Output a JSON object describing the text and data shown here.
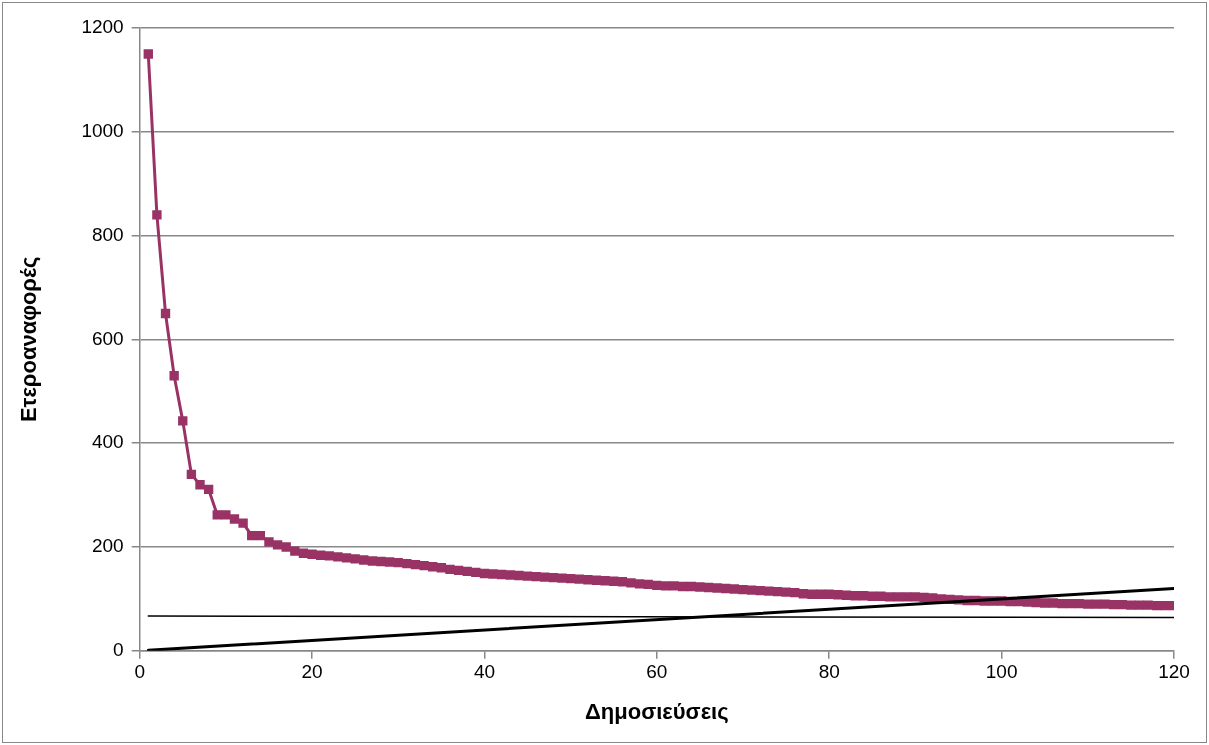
{
  "chart_data": {
    "type": "line",
    "xlabel": "Δημοσιεύσεις",
    "ylabel": "Ετεροαναφορές",
    "xlim": [
      0,
      120
    ],
    "xticks": [
      0,
      20,
      40,
      60,
      80,
      100,
      120
    ],
    "ylim": [
      0,
      1200
    ],
    "yticks": [
      0,
      200,
      400,
      600,
      800,
      1000,
      1200
    ],
    "grid": "y",
    "legend": false,
    "line_style": "solid",
    "series": [
      {
        "color": "#993366",
        "marker": "square",
        "x": [
          1,
          2,
          3,
          4,
          5,
          6,
          7,
          8,
          9,
          10,
          11,
          12,
          13,
          14,
          15,
          16,
          17,
          18,
          19,
          20,
          21,
          22,
          23,
          24,
          25,
          26,
          27,
          28,
          29,
          30,
          31,
          32,
          33,
          34,
          35,
          36,
          37,
          38,
          39,
          40,
          41,
          42,
          43,
          44,
          45,
          46,
          47,
          48,
          49,
          50,
          51,
          52,
          53,
          54,
          55,
          56,
          57,
          58,
          59,
          60,
          61,
          62,
          63,
          64,
          65,
          66,
          67,
          68,
          69,
          70,
          71,
          72,
          73,
          74,
          75,
          76,
          77,
          78,
          79,
          80,
          81,
          82,
          83,
          84,
          85,
          86,
          87,
          88,
          89,
          90,
          91,
          92,
          93,
          94,
          95,
          96,
          97,
          98,
          99,
          100,
          101,
          102,
          103,
          104,
          105,
          106,
          107,
          108,
          109,
          110,
          111,
          112,
          113,
          114,
          115,
          116,
          117,
          118,
          119,
          120
        ],
        "values": [
          1150,
          840,
          650,
          530,
          443,
          340,
          320,
          311,
          262,
          262,
          254,
          246,
          222,
          222,
          210,
          204,
          200,
          192,
          188,
          186,
          184,
          183,
          181,
          179,
          177,
          175,
          173,
          172,
          171,
          170,
          168,
          166,
          164,
          162,
          160,
          157,
          155,
          153,
          151,
          149,
          148,
          147,
          146,
          145,
          144,
          143,
          142,
          141,
          140,
          139,
          138,
          137,
          136,
          135,
          134,
          133,
          131,
          129,
          128,
          126,
          125,
          125,
          124,
          124,
          123,
          122,
          121,
          120,
          119,
          118,
          117,
          116,
          115,
          114,
          113,
          112,
          110,
          109,
          109,
          109,
          108,
          107,
          106,
          106,
          105,
          105,
          104,
          104,
          104,
          104,
          103,
          102,
          100,
          99,
          98,
          97,
          97,
          96,
          96,
          96,
          95,
          95,
          94,
          93,
          92,
          92,
          91,
          91,
          91,
          90,
          90,
          90,
          89,
          89,
          88,
          88,
          88,
          87,
          87,
          87
        ]
      },
      {
        "color": "#000000",
        "marker": "none",
        "x": [
          1,
          120
        ],
        "values": [
          1,
          120
        ]
      },
      {
        "color": "#000000",
        "marker": "none",
        "x": [
          1,
          120
        ],
        "values": [
          67,
          64
        ]
      }
    ]
  }
}
